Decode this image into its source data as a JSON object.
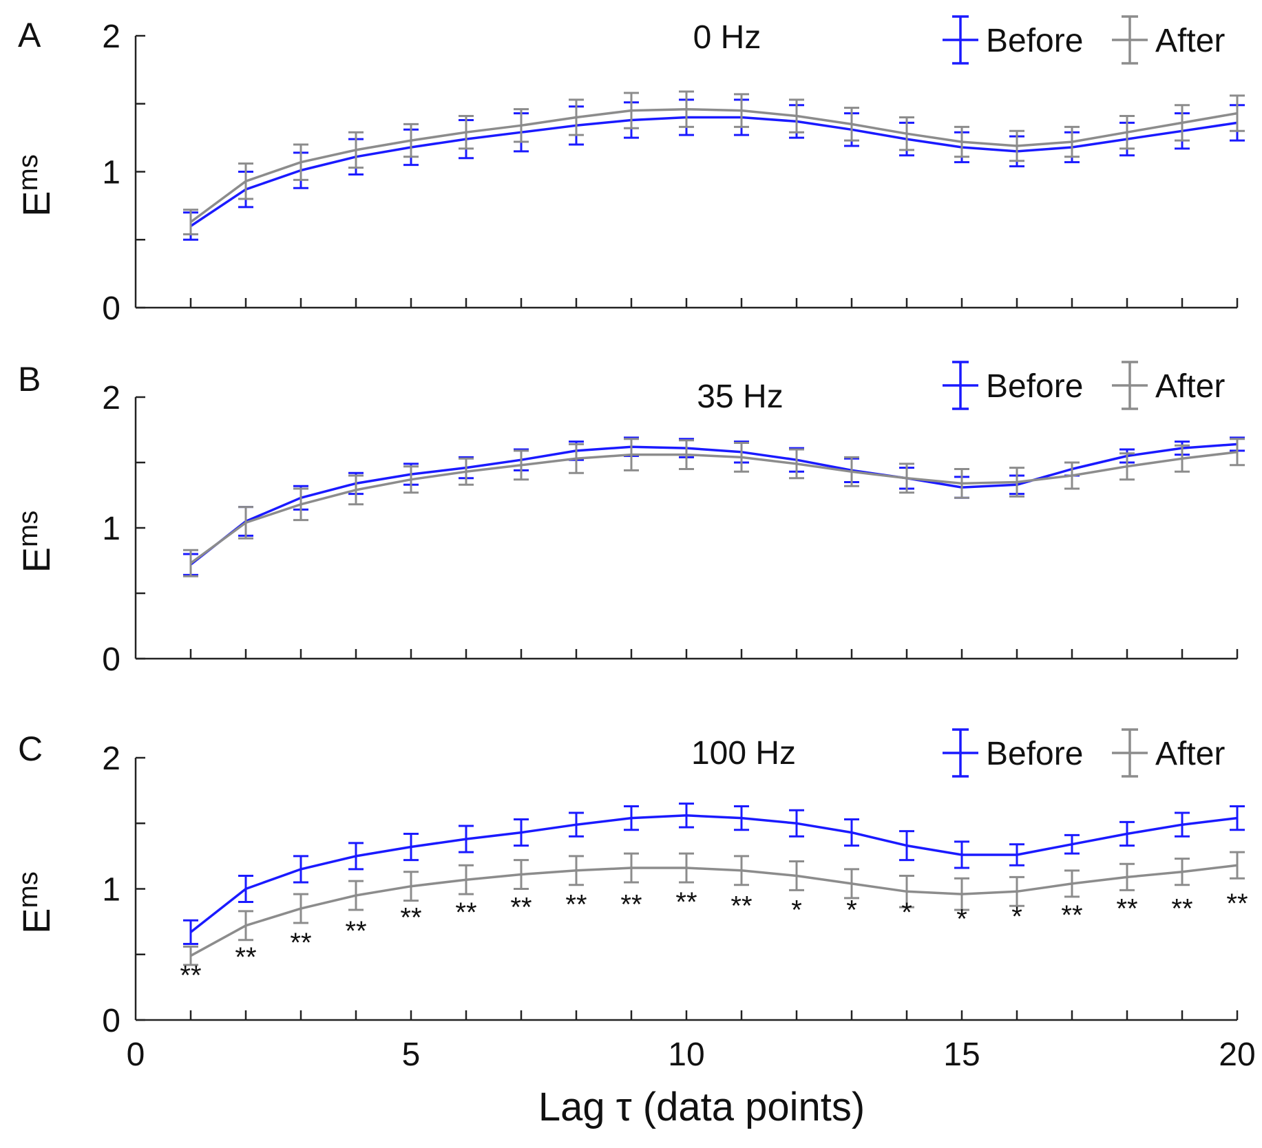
{
  "chart_data": [
    {
      "type": "line",
      "panel_label": "A",
      "title": "0 Hz",
      "ylabel": "E",
      "ylabel_subscript": "ms",
      "xlim": [
        0,
        20
      ],
      "ylim": [
        0,
        2
      ],
      "yticks": [
        "0",
        "1",
        "2"
      ],
      "x": [
        1,
        2,
        3,
        4,
        5,
        6,
        7,
        8,
        9,
        10,
        11,
        12,
        13,
        14,
        15,
        16,
        17,
        18,
        19,
        20
      ],
      "series": [
        {
          "name": "Before",
          "color": "#1a1aff",
          "values": [
            0.6,
            0.87,
            1.01,
            1.11,
            1.18,
            1.24,
            1.29,
            1.34,
            1.38,
            1.4,
            1.4,
            1.37,
            1.31,
            1.24,
            1.18,
            1.15,
            1.18,
            1.24,
            1.3,
            1.36
          ],
          "errors": [
            0.1,
            0.13,
            0.13,
            0.13,
            0.13,
            0.14,
            0.14,
            0.14,
            0.13,
            0.13,
            0.13,
            0.12,
            0.12,
            0.12,
            0.11,
            0.11,
            0.11,
            0.12,
            0.13,
            0.13
          ]
        },
        {
          "name": "After",
          "color": "#8c8c8c",
          "values": [
            0.63,
            0.93,
            1.07,
            1.16,
            1.23,
            1.29,
            1.34,
            1.4,
            1.45,
            1.46,
            1.45,
            1.41,
            1.35,
            1.28,
            1.22,
            1.19,
            1.22,
            1.29,
            1.36,
            1.43
          ],
          "errors": [
            0.09,
            0.13,
            0.13,
            0.13,
            0.12,
            0.12,
            0.12,
            0.13,
            0.13,
            0.13,
            0.12,
            0.12,
            0.12,
            0.12,
            0.11,
            0.11,
            0.11,
            0.12,
            0.13,
            0.13
          ]
        }
      ],
      "significance": []
    },
    {
      "type": "line",
      "panel_label": "B",
      "title": "35 Hz",
      "ylabel": "E",
      "ylabel_subscript": "ms",
      "xlim": [
        0,
        20
      ],
      "ylim": [
        0,
        2
      ],
      "yticks": [
        "0",
        "1",
        "2"
      ],
      "x": [
        1,
        2,
        3,
        4,
        5,
        6,
        7,
        8,
        9,
        10,
        11,
        12,
        13,
        14,
        15,
        16,
        17,
        18,
        19,
        20
      ],
      "series": [
        {
          "name": "Before",
          "color": "#1a1aff",
          "values": [
            0.72,
            1.05,
            1.23,
            1.34,
            1.41,
            1.46,
            1.52,
            1.59,
            1.62,
            1.61,
            1.58,
            1.52,
            1.44,
            1.38,
            1.31,
            1.33,
            1.45,
            1.55,
            1.61,
            1.64
          ],
          "errors": [
            0.08,
            0.11,
            0.09,
            0.08,
            0.08,
            0.08,
            0.08,
            0.07,
            0.07,
            0.07,
            0.08,
            0.09,
            0.09,
            0.08,
            0.08,
            0.07,
            0.05,
            0.05,
            0.05,
            0.05
          ]
        },
        {
          "name": "After",
          "color": "#8c8c8c",
          "values": [
            0.73,
            1.04,
            1.18,
            1.29,
            1.37,
            1.43,
            1.48,
            1.53,
            1.56,
            1.56,
            1.54,
            1.49,
            1.43,
            1.38,
            1.34,
            1.35,
            1.4,
            1.47,
            1.53,
            1.58
          ],
          "errors": [
            0.1,
            0.12,
            0.12,
            0.11,
            0.1,
            0.1,
            0.11,
            0.11,
            0.12,
            0.11,
            0.11,
            0.11,
            0.11,
            0.11,
            0.11,
            0.11,
            0.1,
            0.1,
            0.1,
            0.1
          ]
        }
      ],
      "significance": []
    },
    {
      "type": "line",
      "panel_label": "C",
      "title": "100 Hz",
      "ylabel": "E",
      "ylabel_subscript": "ms",
      "xlabel": "Lag τ (data points)",
      "xlim": [
        0,
        20
      ],
      "ylim": [
        0,
        2
      ],
      "xticks": [
        "0",
        "5",
        "10",
        "15",
        "20"
      ],
      "yticks": [
        "0",
        "1",
        "2"
      ],
      "x": [
        1,
        2,
        3,
        4,
        5,
        6,
        7,
        8,
        9,
        10,
        11,
        12,
        13,
        14,
        15,
        16,
        17,
        18,
        19,
        20
      ],
      "series": [
        {
          "name": "Before",
          "color": "#1a1aff",
          "values": [
            0.67,
            1.0,
            1.15,
            1.25,
            1.32,
            1.38,
            1.43,
            1.49,
            1.54,
            1.56,
            1.54,
            1.5,
            1.43,
            1.33,
            1.26,
            1.26,
            1.34,
            1.42,
            1.49,
            1.54
          ],
          "errors": [
            0.09,
            0.1,
            0.1,
            0.1,
            0.1,
            0.1,
            0.1,
            0.09,
            0.09,
            0.09,
            0.09,
            0.1,
            0.1,
            0.11,
            0.1,
            0.08,
            0.07,
            0.09,
            0.09,
            0.09
          ]
        },
        {
          "name": "After",
          "color": "#8c8c8c",
          "values": [
            0.49,
            0.72,
            0.85,
            0.95,
            1.02,
            1.07,
            1.11,
            1.14,
            1.16,
            1.16,
            1.14,
            1.1,
            1.04,
            0.98,
            0.96,
            0.98,
            1.04,
            1.09,
            1.13,
            1.18
          ],
          "errors": [
            0.07,
            0.11,
            0.11,
            0.11,
            0.11,
            0.11,
            0.11,
            0.11,
            0.11,
            0.11,
            0.11,
            0.11,
            0.11,
            0.12,
            0.12,
            0.11,
            0.1,
            0.1,
            0.1,
            0.1
          ]
        }
      ],
      "significance": [
        {
          "x": 1,
          "y": 0.27,
          "label": "**"
        },
        {
          "x": 2,
          "y": 0.41,
          "label": "**"
        },
        {
          "x": 3,
          "y": 0.52,
          "label": "**"
        },
        {
          "x": 4,
          "y": 0.61,
          "label": "**"
        },
        {
          "x": 5,
          "y": 0.71,
          "label": "**"
        },
        {
          "x": 6,
          "y": 0.75,
          "label": "**"
        },
        {
          "x": 7,
          "y": 0.79,
          "label": "**"
        },
        {
          "x": 8,
          "y": 0.81,
          "label": "**"
        },
        {
          "x": 9,
          "y": 0.81,
          "label": "**"
        },
        {
          "x": 10,
          "y": 0.83,
          "label": "**"
        },
        {
          "x": 11,
          "y": 0.8,
          "label": "**"
        },
        {
          "x": 12,
          "y": 0.77,
          "label": "*"
        },
        {
          "x": 13,
          "y": 0.77,
          "label": "*"
        },
        {
          "x": 14,
          "y": 0.75,
          "label": "*"
        },
        {
          "x": 15,
          "y": 0.7,
          "label": "*"
        },
        {
          "x": 16,
          "y": 0.72,
          "label": "*"
        },
        {
          "x": 17,
          "y": 0.73,
          "label": "**"
        },
        {
          "x": 18,
          "y": 0.78,
          "label": "**"
        },
        {
          "x": 19,
          "y": 0.78,
          "label": "**"
        },
        {
          "x": 20,
          "y": 0.82,
          "label": "**"
        }
      ]
    }
  ]
}
